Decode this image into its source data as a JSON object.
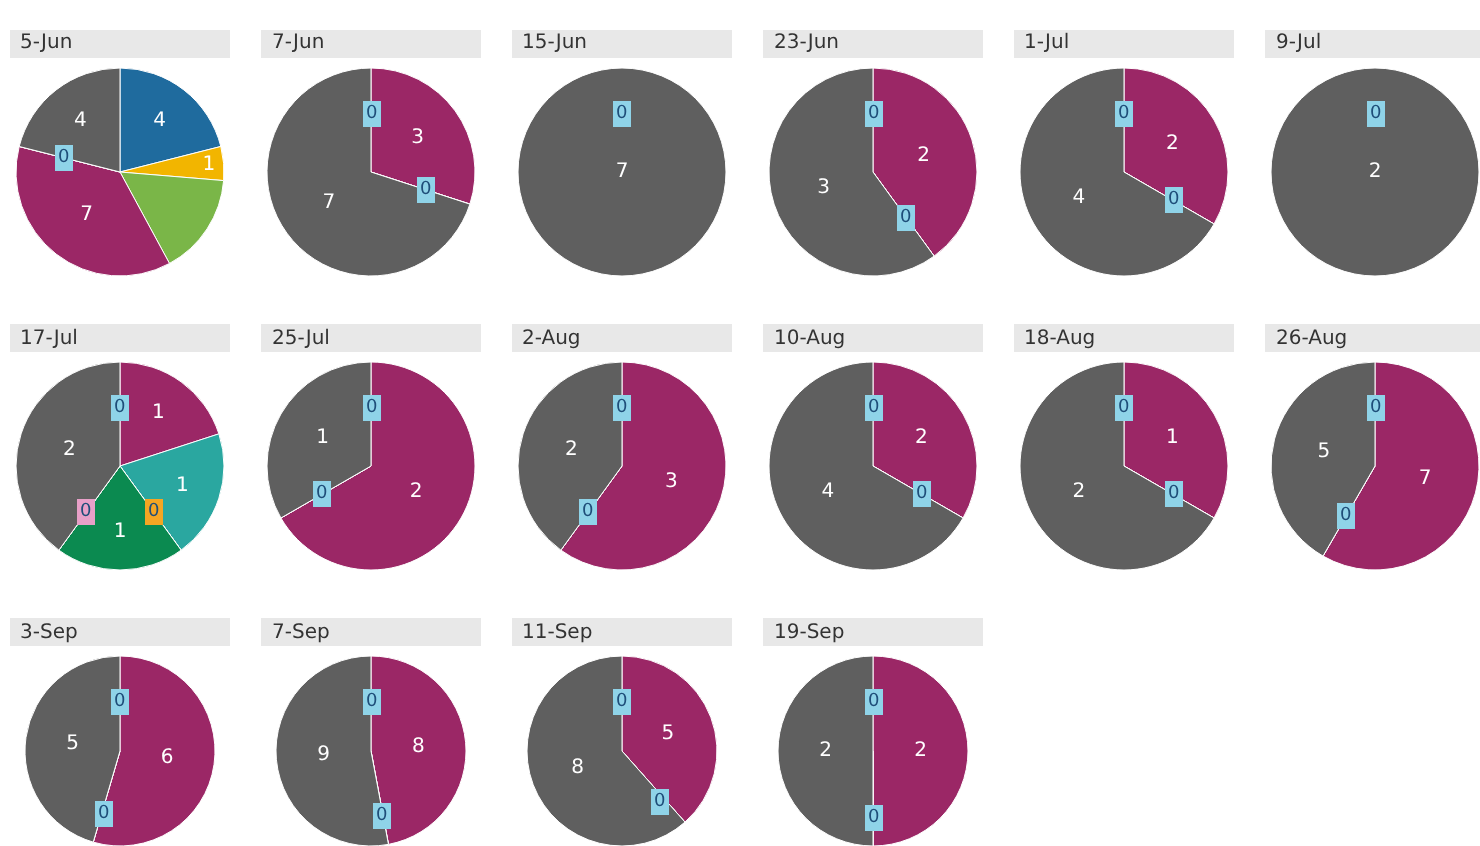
{
  "chart_data": [
    {
      "type": "pie",
      "title": "5-Jun",
      "categories": [
        null,
        null,
        null,
        null,
        null,
        null
      ],
      "values": [
        4,
        1,
        3,
        7,
        0,
        4
      ],
      "colors": [
        "#1f6b9e",
        "#f2b500",
        "#7ab648",
        "#9b2766",
        "#8fd3e8",
        "#5f5f5f"
      ],
      "value_labels": [
        "4",
        "1",
        null,
        "7",
        "0",
        "4"
      ]
    },
    {
      "type": "pie",
      "title": "7-Jun",
      "categories": [
        null,
        null,
        null,
        null
      ],
      "values": [
        0,
        3,
        0,
        7
      ],
      "colors": [
        "#8fd3e8",
        "#9b2766",
        "#8fd3e8",
        "#5f5f5f"
      ],
      "value_labels": [
        "0",
        "3",
        "0",
        "7"
      ]
    },
    {
      "type": "pie",
      "title": "15-Jun",
      "categories": [
        null,
        null
      ],
      "values": [
        0,
        7
      ],
      "colors": [
        "#8fd3e8",
        "#5f5f5f"
      ],
      "value_labels": [
        "0",
        "7"
      ]
    },
    {
      "type": "pie",
      "title": "23-Jun",
      "categories": [
        null,
        null,
        null,
        null
      ],
      "values": [
        0,
        2,
        0,
        3
      ],
      "colors": [
        "#8fd3e8",
        "#9b2766",
        "#8fd3e8",
        "#5f5f5f"
      ],
      "value_labels": [
        "0",
        "2",
        "0",
        "3"
      ]
    },
    {
      "type": "pie",
      "title": "1-Jul",
      "categories": [
        null,
        null,
        null,
        null
      ],
      "values": [
        0,
        2,
        0,
        4
      ],
      "colors": [
        "#8fd3e8",
        "#9b2766",
        "#8fd3e8",
        "#5f5f5f"
      ],
      "value_labels": [
        "0",
        "2",
        "0",
        "4"
      ]
    },
    {
      "type": "pie",
      "title": "9-Jul",
      "categories": [
        null,
        null
      ],
      "values": [
        0,
        2
      ],
      "colors": [
        "#8fd3e8",
        "#5f5f5f"
      ],
      "value_labels": [
        "0",
        "2"
      ]
    },
    {
      "type": "pie",
      "title": "17-Jul",
      "categories": [
        null,
        null,
        null,
        null,
        null,
        null,
        null
      ],
      "values": [
        0,
        1,
        1,
        0,
        1,
        0,
        2
      ],
      "colors": [
        "#8fd3e8",
        "#9b2766",
        "#2aa7a0",
        "#f5a623",
        "#0b8a50",
        "#e8a0c8",
        "#5f5f5f"
      ],
      "value_labels": [
        "0",
        "1",
        "1",
        "0",
        "1",
        "0",
        "2"
      ]
    },
    {
      "type": "pie",
      "title": "25-Jul",
      "categories": [
        null,
        null,
        null,
        null
      ],
      "values": [
        0,
        2,
        0,
        1
      ],
      "colors": [
        "#8fd3e8",
        "#9b2766",
        "#8fd3e8",
        "#5f5f5f"
      ],
      "value_labels": [
        "0",
        "2",
        "0",
        "1"
      ]
    },
    {
      "type": "pie",
      "title": "2-Aug",
      "categories": [
        null,
        null,
        null,
        null
      ],
      "values": [
        0,
        3,
        0,
        2
      ],
      "colors": [
        "#8fd3e8",
        "#9b2766",
        "#8fd3e8",
        "#5f5f5f"
      ],
      "value_labels": [
        "0",
        "3",
        "0",
        "2"
      ]
    },
    {
      "type": "pie",
      "title": "10-Aug",
      "categories": [
        null,
        null,
        null,
        null
      ],
      "values": [
        0,
        2,
        0,
        4
      ],
      "colors": [
        "#8fd3e8",
        "#9b2766",
        "#8fd3e8",
        "#5f5f5f"
      ],
      "value_labels": [
        "0",
        "2",
        "0",
        "4"
      ]
    },
    {
      "type": "pie",
      "title": "18-Aug",
      "categories": [
        null,
        null,
        null,
        null
      ],
      "values": [
        0,
        1,
        0,
        2
      ],
      "colors": [
        "#8fd3e8",
        "#9b2766",
        "#8fd3e8",
        "#5f5f5f"
      ],
      "value_labels": [
        "0",
        "1",
        "0",
        "2"
      ]
    },
    {
      "type": "pie",
      "title": "26-Aug",
      "categories": [
        null,
        null,
        null,
        null
      ],
      "values": [
        0,
        7,
        0,
        5
      ],
      "colors": [
        "#8fd3e8",
        "#9b2766",
        "#8fd3e8",
        "#5f5f5f"
      ],
      "value_labels": [
        "0",
        "7",
        "0",
        "5"
      ]
    },
    {
      "type": "pie",
      "title": "3-Sep",
      "categories": [
        null,
        null,
        null,
        null
      ],
      "values": [
        0,
        6,
        0,
        5
      ],
      "colors": [
        "#8fd3e8",
        "#9b2766",
        "#8fd3e8",
        "#5f5f5f"
      ],
      "value_labels": [
        "0",
        "6",
        "0",
        "5"
      ]
    },
    {
      "type": "pie",
      "title": "7-Sep",
      "categories": [
        null,
        null,
        null,
        null
      ],
      "values": [
        0,
        8,
        0,
        9
      ],
      "colors": [
        "#8fd3e8",
        "#9b2766",
        "#8fd3e8",
        "#5f5f5f"
      ],
      "value_labels": [
        "0",
        "8",
        "0",
        "9"
      ]
    },
    {
      "type": "pie",
      "title": "11-Sep",
      "categories": [
        null,
        null,
        null,
        null
      ],
      "values": [
        0,
        5,
        0,
        8
      ],
      "colors": [
        "#8fd3e8",
        "#9b2766",
        "#8fd3e8",
        "#5f5f5f"
      ],
      "value_labels": [
        "0",
        "5",
        "0",
        "8"
      ]
    },
    {
      "type": "pie",
      "title": "19-Sep",
      "categories": [
        null,
        null,
        null,
        null
      ],
      "values": [
        0,
        2,
        0,
        2
      ],
      "colors": [
        "#8fd3e8",
        "#9b2766",
        "#8fd3e8",
        "#5f5f5f"
      ],
      "value_labels": [
        "0",
        "2",
        "0",
        "2"
      ]
    }
  ]
}
